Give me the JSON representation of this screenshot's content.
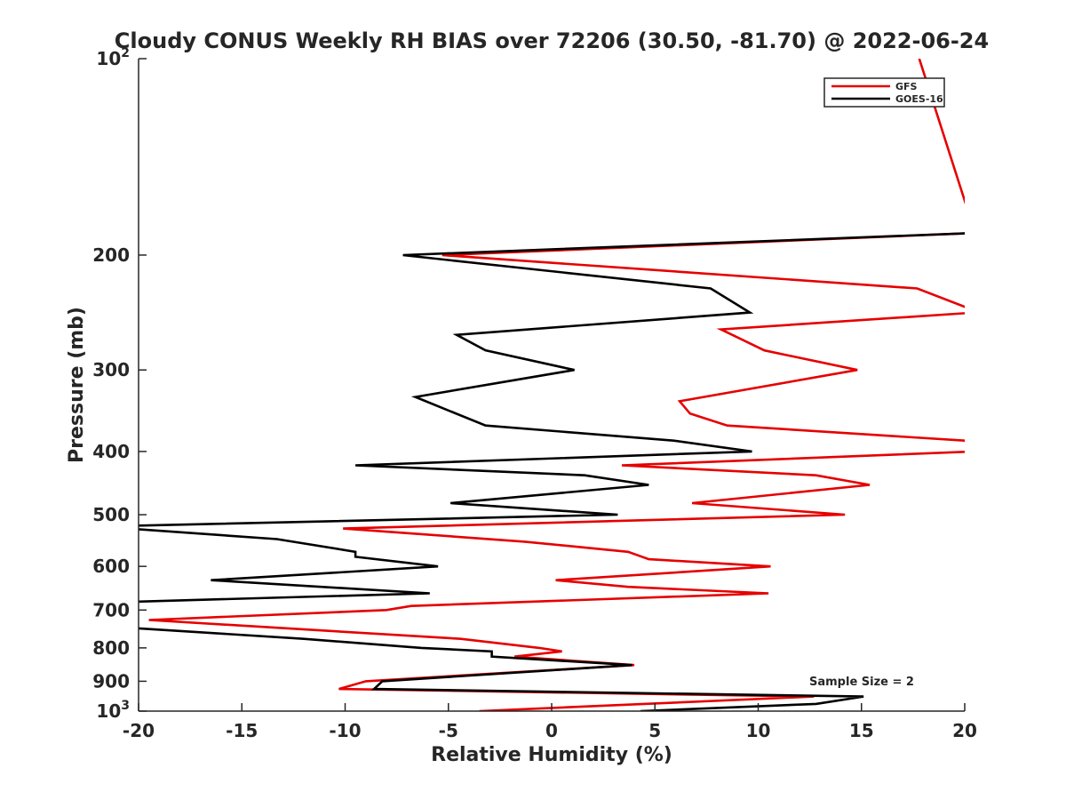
{
  "chart_data": {
    "type": "line",
    "title": "Cloudy CONUS Weekly RH BIAS over 72206 (30.50, -81.70) @ 2022-06-24",
    "xlabel": "Relative Humidity (%)",
    "ylabel": "Pressure (mb)",
    "xlim": [
      -20,
      20
    ],
    "ylim": [
      100,
      1000
    ],
    "yscale": "log",
    "y_reversed": true,
    "x_ticks": [
      -20,
      -15,
      -10,
      -5,
      0,
      5,
      10,
      15,
      20
    ],
    "x_tick_labels": [
      "-20",
      "-15",
      "-10",
      "-5",
      "0",
      "5",
      "10",
      "15",
      "20"
    ],
    "y_ticks": [
      100,
      200,
      300,
      400,
      500,
      600,
      700,
      800,
      900,
      1000
    ],
    "y_tick_labels": [
      {
        "base": "10",
        "exp": "2"
      },
      {
        "base": "200",
        "exp": ""
      },
      {
        "base": "300",
        "exp": ""
      },
      {
        "base": "400",
        "exp": ""
      },
      {
        "base": "500",
        "exp": ""
      },
      {
        "base": "600",
        "exp": ""
      },
      {
        "base": "700",
        "exp": ""
      },
      {
        "base": "800",
        "exp": ""
      },
      {
        "base": "900",
        "exp": ""
      },
      {
        "base": "10",
        "exp": "3"
      }
    ],
    "grid": false,
    "legend_position": "top-right",
    "annotation": "Sample Size = 2",
    "series": [
      {
        "name": "GFS",
        "color": "#e60000",
        "points": [
          [
            -3.5,
            1000
          ],
          [
            12.7,
            950
          ],
          [
            -10.3,
            925
          ],
          [
            -9.0,
            900
          ],
          [
            4.0,
            850
          ],
          [
            -1.8,
            825
          ],
          [
            0.5,
            810
          ],
          [
            -0.6,
            800
          ],
          [
            -4.4,
            775
          ],
          [
            -19.5,
            725
          ],
          [
            -8.0,
            700
          ],
          [
            -6.8,
            690
          ],
          [
            10.5,
            660
          ],
          [
            3.7,
            645
          ],
          [
            0.2,
            630
          ],
          [
            10.6,
            600
          ],
          [
            4.7,
            585
          ],
          [
            3.7,
            570
          ],
          [
            -1.3,
            550
          ],
          [
            -10.1,
            525
          ],
          [
            14.2,
            500
          ],
          [
            6.8,
            480
          ],
          [
            15.4,
            450
          ],
          [
            12.8,
            435
          ],
          [
            3.4,
            420
          ],
          [
            20.5,
            400
          ],
          [
            20.0,
            385
          ],
          [
            8.5,
            365
          ],
          [
            6.7,
            350
          ],
          [
            6.2,
            335
          ],
          [
            14.8,
            300
          ],
          [
            10.3,
            280
          ],
          [
            8.2,
            260
          ],
          [
            20.5,
            245
          ],
          [
            20.0,
            240
          ],
          [
            17.7,
            225
          ],
          [
            -5.3,
            200
          ],
          [
            20.5,
            185
          ],
          [
            17.8,
            100
          ]
        ]
      },
      {
        "name": "GOES-16",
        "color": "#000000",
        "points": [
          [
            4.3,
            1000
          ],
          [
            12.8,
            975
          ],
          [
            15.1,
            950
          ],
          [
            -8.6,
            925
          ],
          [
            -8.2,
            900
          ],
          [
            3.9,
            850
          ],
          [
            -2.9,
            825
          ],
          [
            -2.9,
            810
          ],
          [
            -6.3,
            800
          ],
          [
            -12.0,
            775
          ],
          [
            -20.5,
            745
          ],
          [
            -20.5,
            680
          ],
          [
            -5.9,
            660
          ],
          [
            -16.5,
            630
          ],
          [
            -5.5,
            600
          ],
          [
            -9.5,
            580
          ],
          [
            -9.5,
            570
          ],
          [
            -13.3,
            545
          ],
          [
            -20.5,
            525
          ],
          [
            -20.3,
            520
          ],
          [
            3.2,
            500
          ],
          [
            -4.9,
            480
          ],
          [
            4.7,
            450
          ],
          [
            1.6,
            435
          ],
          [
            -9.5,
            420
          ],
          [
            9.7,
            400
          ],
          [
            5.9,
            385
          ],
          [
            -3.2,
            365
          ],
          [
            -5.1,
            345
          ],
          [
            -6.6,
            330
          ],
          [
            1.1,
            300
          ],
          [
            -3.2,
            280
          ],
          [
            -4.6,
            265
          ],
          [
            9.6,
            245
          ],
          [
            7.7,
            225
          ],
          [
            -7.2,
            200
          ],
          [
            20.5,
            185
          ]
        ]
      }
    ]
  }
}
